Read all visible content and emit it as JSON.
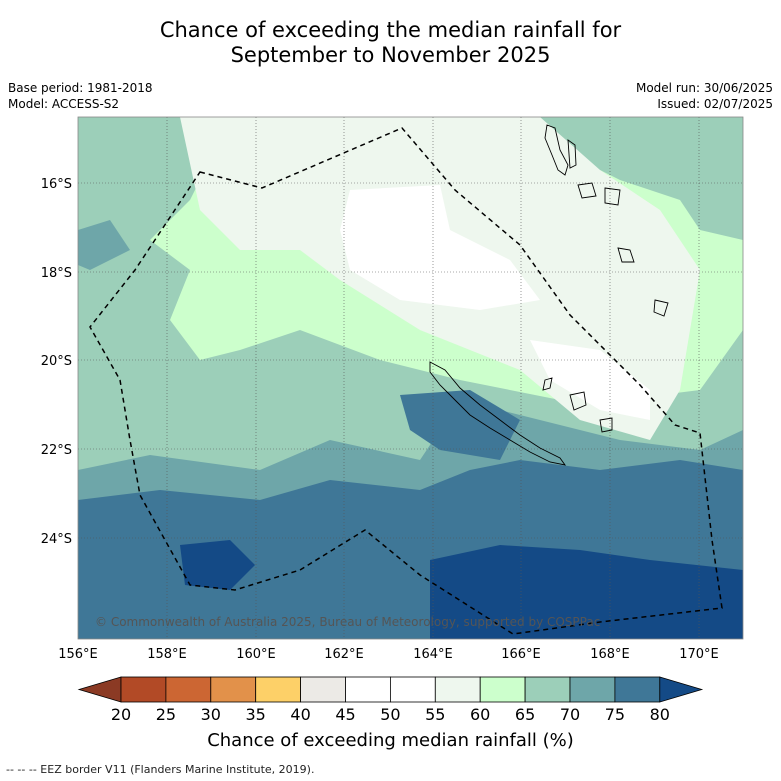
{
  "title_line1": "Chance of exceeding the median rainfall for",
  "title_line2": "September to November 2025",
  "meta": {
    "base_period": "Base period: 1981-2018",
    "model": "Model: ACCESS-S2",
    "model_run": "Model run: 30/06/2025",
    "issued": "Issued: 02/07/2025"
  },
  "map": {
    "lon_range": [
      156,
      171
    ],
    "lat_range": [
      -26.2,
      -14.5
    ],
    "lon_ticks": [
      "156°E",
      "158°E",
      "160°E",
      "162°E",
      "164°E",
      "166°E",
      "168°E",
      "170°E"
    ],
    "lat_ticks": [
      "16°S",
      "18°S",
      "20°S",
      "22°S",
      "24°S"
    ],
    "copyright": "© Commonwealth of Australia 2025, Bureau of Meteorology, supported by COSPPac"
  },
  "colorbar": {
    "labels": [
      "20",
      "25",
      "30",
      "35",
      "40",
      "45",
      "50",
      "55",
      "60",
      "65",
      "70",
      "75",
      "80"
    ],
    "colors": [
      "#b24a26",
      "#cc6633",
      "#e2914a",
      "#fdd068",
      "#eceae6",
      "#ffffff",
      "#ffffff",
      "#eef7ee",
      "#ccffcc",
      "#9ccfb9",
      "#6ea6a9",
      "#3f7797"
    ],
    "low_extend_color": "#8b3a24",
    "high_extend_color": "#144a86",
    "title": "Chance of exceeding median rainfall (%)"
  },
  "footer": "--  --  -- EEZ border V11 (Flanders Marine Institute, 2019)."
}
